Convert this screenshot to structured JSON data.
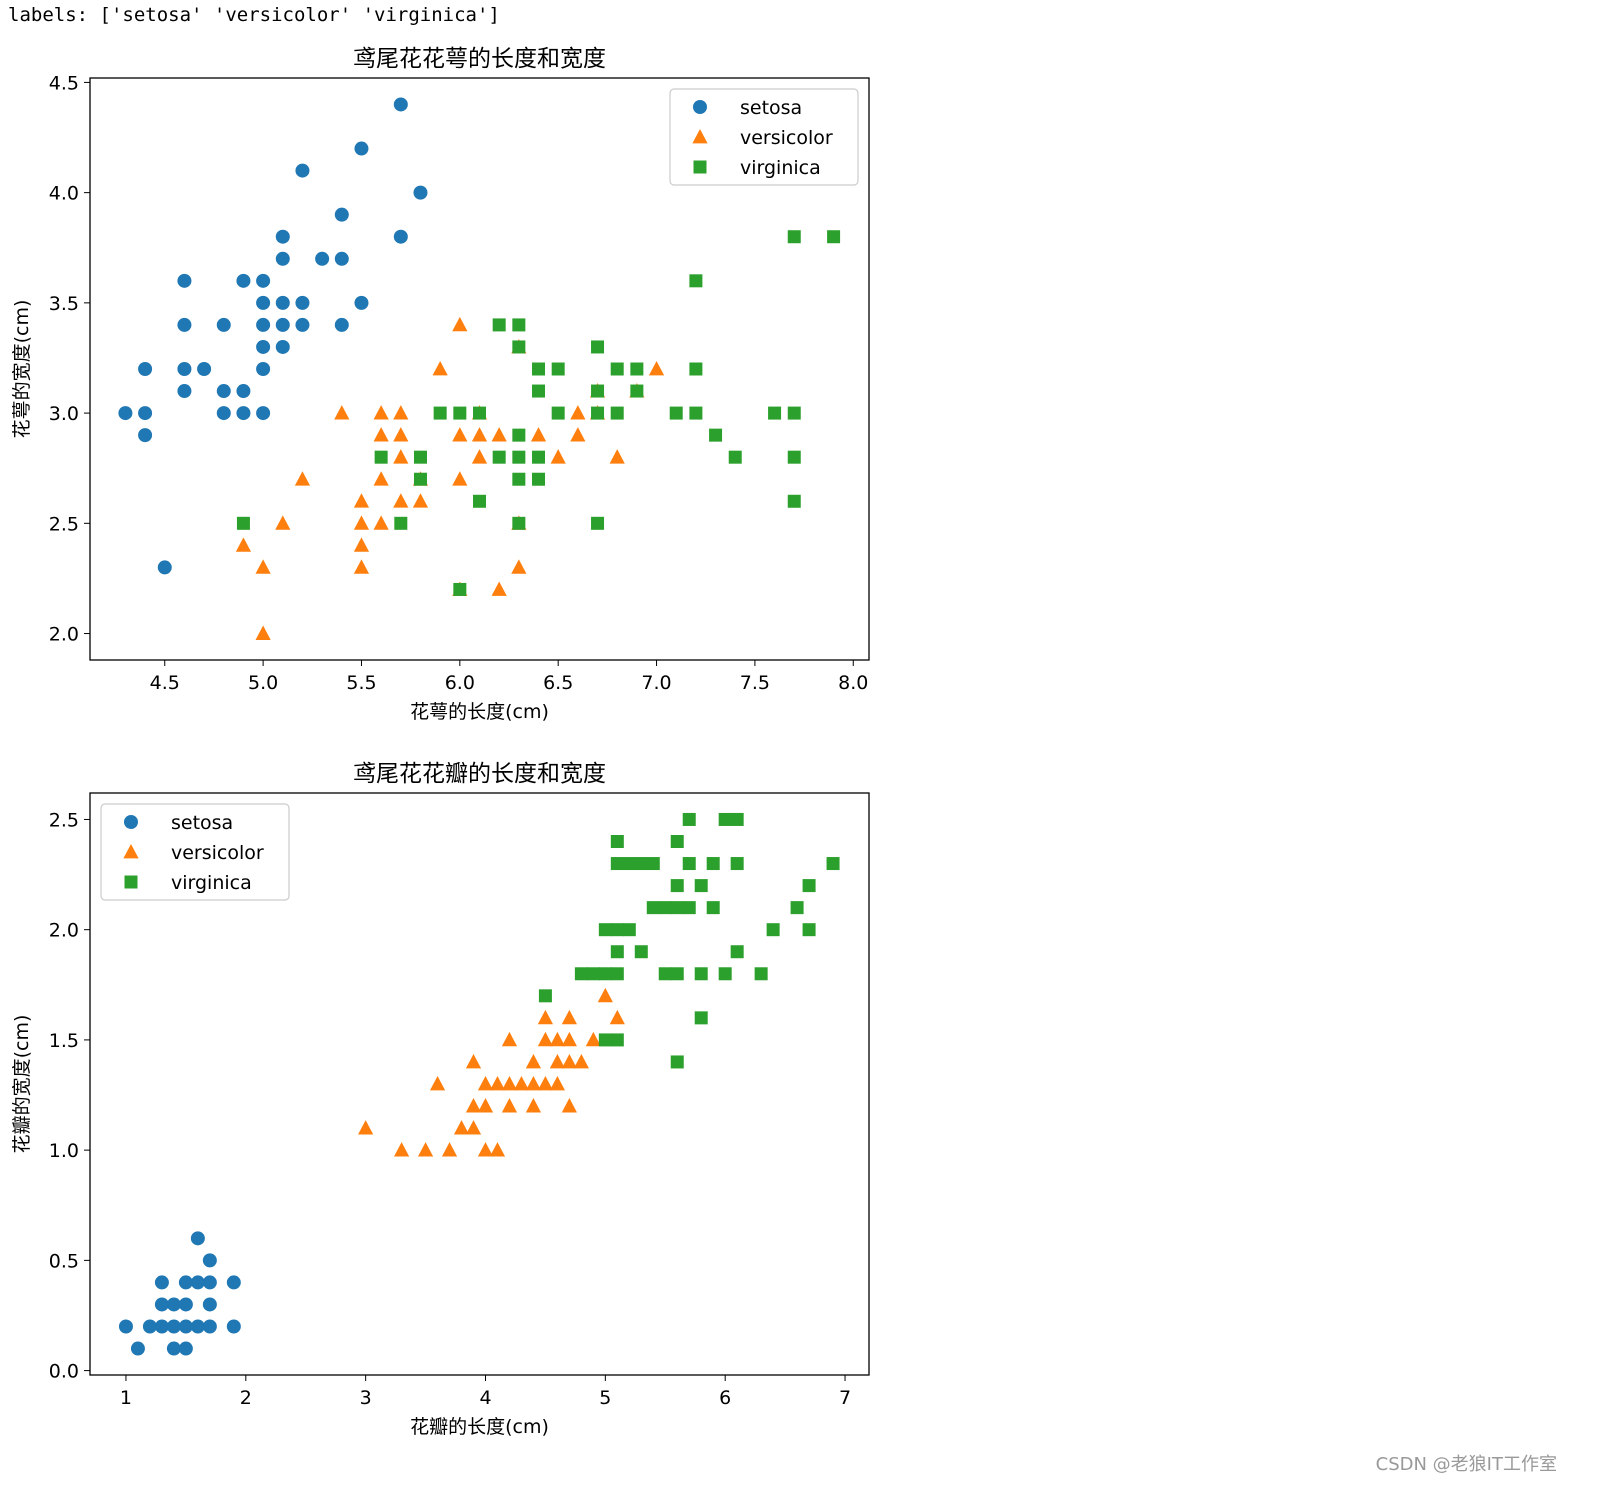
{
  "output": {
    "labels_text": "labels: ['setosa' 'versicolor' 'virginica']"
  },
  "watermark": "CSDN @老狼IT工作室",
  "colors": {
    "setosa": "#1f77b4",
    "versicolor": "#ff7f0e",
    "virginica": "#2ca02c"
  },
  "chart_data": [
    {
      "type": "scatter",
      "title": "鸢尾花花萼的长度和宽度",
      "xlabel": "花萼的长度(cm)",
      "ylabel": "花萼的宽度(cm)",
      "xlim": [
        4.12,
        8.08
      ],
      "ylim": [
        1.88,
        4.52
      ],
      "xticks": [
        4.5,
        5.0,
        5.5,
        6.0,
        6.5,
        7.0,
        7.5,
        8.0
      ],
      "xticklabels": [
        "4.5",
        "5.0",
        "5.5",
        "6.0",
        "6.5",
        "7.0",
        "7.5",
        "8.0"
      ],
      "yticks": [
        2.0,
        2.5,
        3.0,
        3.5,
        4.0,
        4.5
      ],
      "yticklabels": [
        "2.0",
        "2.5",
        "3.0",
        "3.5",
        "4.0",
        "4.5"
      ],
      "legend": "upper-right",
      "series": [
        {
          "name": "setosa",
          "marker": "circle",
          "points": [
            [
              4.3,
              3.0
            ],
            [
              4.4,
              2.9
            ],
            [
              4.4,
              3.0
            ],
            [
              4.4,
              3.2
            ],
            [
              4.5,
              2.3
            ],
            [
              4.6,
              3.1
            ],
            [
              4.6,
              3.2
            ],
            [
              4.6,
              3.4
            ],
            [
              4.6,
              3.6
            ],
            [
              4.7,
              3.2
            ],
            [
              4.8,
              3.0
            ],
            [
              4.8,
              3.1
            ],
            [
              4.8,
              3.4
            ],
            [
              4.9,
              3.0
            ],
            [
              4.9,
              3.1
            ],
            [
              4.9,
              3.6
            ],
            [
              5.0,
              3.0
            ],
            [
              5.0,
              3.2
            ],
            [
              5.0,
              3.3
            ],
            [
              5.0,
              3.4
            ],
            [
              5.0,
              3.5
            ],
            [
              5.0,
              3.6
            ],
            [
              5.1,
              3.3
            ],
            [
              5.1,
              3.4
            ],
            [
              5.1,
              3.5
            ],
            [
              5.1,
              3.7
            ],
            [
              5.1,
              3.8
            ],
            [
              5.2,
              3.4
            ],
            [
              5.2,
              3.5
            ],
            [
              5.2,
              4.1
            ],
            [
              5.3,
              3.7
            ],
            [
              5.4,
              3.4
            ],
            [
              5.4,
              3.7
            ],
            [
              5.4,
              3.9
            ],
            [
              5.5,
              3.5
            ],
            [
              5.5,
              4.2
            ],
            [
              5.7,
              3.8
            ],
            [
              5.7,
              4.4
            ],
            [
              5.8,
              4.0
            ]
          ]
        },
        {
          "name": "versicolor",
          "marker": "triangle",
          "points": [
            [
              4.9,
              2.4
            ],
            [
              5.0,
              2.0
            ],
            [
              5.0,
              2.3
            ],
            [
              5.1,
              2.5
            ],
            [
              5.2,
              2.7
            ],
            [
              5.4,
              3.0
            ],
            [
              5.5,
              2.3
            ],
            [
              5.5,
              2.4
            ],
            [
              5.5,
              2.5
            ],
            [
              5.5,
              2.6
            ],
            [
              5.6,
              2.5
            ],
            [
              5.6,
              2.7
            ],
            [
              5.6,
              2.9
            ],
            [
              5.6,
              3.0
            ],
            [
              5.7,
              2.6
            ],
            [
              5.7,
              2.8
            ],
            [
              5.7,
              2.9
            ],
            [
              5.7,
              3.0
            ],
            [
              5.8,
              2.6
            ],
            [
              5.8,
              2.7
            ],
            [
              5.9,
              3.2
            ],
            [
              6.0,
              2.2
            ],
            [
              6.0,
              2.7
            ],
            [
              6.0,
              2.9
            ],
            [
              6.0,
              3.4
            ],
            [
              6.1,
              2.8
            ],
            [
              6.1,
              2.9
            ],
            [
              6.1,
              3.0
            ],
            [
              6.2,
              2.2
            ],
            [
              6.2,
              2.9
            ],
            [
              6.3,
              2.3
            ],
            [
              6.3,
              2.5
            ],
            [
              6.3,
              3.3
            ],
            [
              6.4,
              2.9
            ],
            [
              6.5,
              2.8
            ],
            [
              6.6,
              2.9
            ],
            [
              6.6,
              3.0
            ],
            [
              6.7,
              3.0
            ],
            [
              6.7,
              3.1
            ],
            [
              6.8,
              2.8
            ],
            [
              6.9,
              3.1
            ],
            [
              7.0,
              3.2
            ]
          ]
        },
        {
          "name": "virginica",
          "marker": "square",
          "points": [
            [
              4.9,
              2.5
            ],
            [
              5.6,
              2.8
            ],
            [
              5.7,
              2.5
            ],
            [
              5.8,
              2.7
            ],
            [
              5.8,
              2.8
            ],
            [
              5.9,
              3.0
            ],
            [
              6.0,
              2.2
            ],
            [
              6.0,
              3.0
            ],
            [
              6.1,
              2.6
            ],
            [
              6.1,
              3.0
            ],
            [
              6.2,
              2.8
            ],
            [
              6.2,
              3.4
            ],
            [
              6.3,
              2.5
            ],
            [
              6.3,
              2.7
            ],
            [
              6.3,
              2.8
            ],
            [
              6.3,
              2.9
            ],
            [
              6.3,
              3.3
            ],
            [
              6.3,
              3.4
            ],
            [
              6.4,
              2.7
            ],
            [
              6.4,
              2.8
            ],
            [
              6.4,
              3.1
            ],
            [
              6.4,
              3.2
            ],
            [
              6.5,
              3.0
            ],
            [
              6.5,
              3.2
            ],
            [
              6.7,
              2.5
            ],
            [
              6.7,
              3.0
            ],
            [
              6.7,
              3.1
            ],
            [
              6.7,
              3.3
            ],
            [
              6.8,
              3.0
            ],
            [
              6.8,
              3.2
            ],
            [
              6.9,
              3.1
            ],
            [
              6.9,
              3.2
            ],
            [
              7.1,
              3.0
            ],
            [
              7.2,
              3.0
            ],
            [
              7.2,
              3.2
            ],
            [
              7.2,
              3.6
            ],
            [
              7.3,
              2.9
            ],
            [
              7.4,
              2.8
            ],
            [
              7.6,
              3.0
            ],
            [
              7.7,
              2.6
            ],
            [
              7.7,
              2.8
            ],
            [
              7.7,
              3.0
            ],
            [
              7.7,
              3.8
            ],
            [
              7.9,
              3.8
            ]
          ]
        }
      ]
    },
    {
      "type": "scatter",
      "title": "鸢尾花花瓣的长度和宽度",
      "xlabel": "花瓣的长度(cm)",
      "ylabel": "花瓣的宽度(cm)",
      "xlim": [
        0.7,
        7.2
      ],
      "ylim": [
        -0.02,
        2.62
      ],
      "xticks": [
        1,
        2,
        3,
        4,
        5,
        6,
        7
      ],
      "xticklabels": [
        "1",
        "2",
        "3",
        "4",
        "5",
        "6",
        "7"
      ],
      "yticks": [
        0.0,
        0.5,
        1.0,
        1.5,
        2.0,
        2.5
      ],
      "yticklabels": [
        "0.0",
        "0.5",
        "1.0",
        "1.5",
        "2.0",
        "2.5"
      ],
      "legend": "upper-left",
      "series": [
        {
          "name": "setosa",
          "marker": "circle",
          "points": [
            [
              1.0,
              0.2
            ],
            [
              1.1,
              0.1
            ],
            [
              1.2,
              0.2
            ],
            [
              1.3,
              0.2
            ],
            [
              1.3,
              0.3
            ],
            [
              1.3,
              0.4
            ],
            [
              1.4,
              0.1
            ],
            [
              1.4,
              0.2
            ],
            [
              1.4,
              0.3
            ],
            [
              1.5,
              0.1
            ],
            [
              1.5,
              0.2
            ],
            [
              1.5,
              0.3
            ],
            [
              1.5,
              0.4
            ],
            [
              1.6,
              0.2
            ],
            [
              1.6,
              0.4
            ],
            [
              1.6,
              0.6
            ],
            [
              1.7,
              0.2
            ],
            [
              1.7,
              0.3
            ],
            [
              1.7,
              0.4
            ],
            [
              1.7,
              0.5
            ],
            [
              1.9,
              0.2
            ],
            [
              1.9,
              0.4
            ]
          ]
        },
        {
          "name": "versicolor",
          "marker": "triangle",
          "points": [
            [
              3.0,
              1.1
            ],
            [
              3.3,
              1.0
            ],
            [
              3.5,
              1.0
            ],
            [
              3.6,
              1.3
            ],
            [
              3.7,
              1.0
            ],
            [
              3.8,
              1.1
            ],
            [
              3.9,
              1.1
            ],
            [
              3.9,
              1.2
            ],
            [
              3.9,
              1.4
            ],
            [
              4.0,
              1.0
            ],
            [
              4.0,
              1.2
            ],
            [
              4.0,
              1.3
            ],
            [
              4.1,
              1.0
            ],
            [
              4.1,
              1.3
            ],
            [
              4.2,
              1.2
            ],
            [
              4.2,
              1.3
            ],
            [
              4.2,
              1.5
            ],
            [
              4.3,
              1.3
            ],
            [
              4.4,
              1.2
            ],
            [
              4.4,
              1.3
            ],
            [
              4.4,
              1.4
            ],
            [
              4.5,
              1.3
            ],
            [
              4.5,
              1.5
            ],
            [
              4.5,
              1.6
            ],
            [
              4.6,
              1.3
            ],
            [
              4.6,
              1.4
            ],
            [
              4.6,
              1.5
            ],
            [
              4.7,
              1.2
            ],
            [
              4.7,
              1.4
            ],
            [
              4.7,
              1.5
            ],
            [
              4.7,
              1.6
            ],
            [
              4.8,
              1.4
            ],
            [
              4.9,
              1.5
            ],
            [
              5.0,
              1.7
            ],
            [
              5.1,
              1.6
            ]
          ]
        },
        {
          "name": "virginica",
          "marker": "square",
          "points": [
            [
              4.5,
              1.7
            ],
            [
              4.8,
              1.8
            ],
            [
              4.9,
              1.8
            ],
            [
              5.0,
              1.5
            ],
            [
              5.0,
              1.8
            ],
            [
              5.0,
              2.0
            ],
            [
              5.1,
              1.5
            ],
            [
              5.1,
              1.8
            ],
            [
              5.1,
              1.9
            ],
            [
              5.1,
              2.0
            ],
            [
              5.1,
              2.3
            ],
            [
              5.1,
              2.4
            ],
            [
              5.2,
              2.0
            ],
            [
              5.2,
              2.3
            ],
            [
              5.3,
              1.9
            ],
            [
              5.3,
              2.3
            ],
            [
              5.4,
              2.1
            ],
            [
              5.4,
              2.3
            ],
            [
              5.5,
              1.8
            ],
            [
              5.5,
              2.1
            ],
            [
              5.6,
              1.4
            ],
            [
              5.6,
              1.8
            ],
            [
              5.6,
              2.1
            ],
            [
              5.6,
              2.2
            ],
            [
              5.6,
              2.4
            ],
            [
              5.7,
              2.1
            ],
            [
              5.7,
              2.3
            ],
            [
              5.7,
              2.5
            ],
            [
              5.8,
              1.6
            ],
            [
              5.8,
              1.8
            ],
            [
              5.8,
              2.2
            ],
            [
              5.9,
              2.1
            ],
            [
              5.9,
              2.3
            ],
            [
              6.0,
              1.8
            ],
            [
              6.0,
              2.5
            ],
            [
              6.1,
              1.9
            ],
            [
              6.1,
              2.3
            ],
            [
              6.1,
              2.5
            ],
            [
              6.3,
              1.8
            ],
            [
              6.4,
              2.0
            ],
            [
              6.6,
              2.1
            ],
            [
              6.7,
              2.0
            ],
            [
              6.7,
              2.2
            ],
            [
              6.9,
              2.3
            ]
          ]
        }
      ]
    }
  ]
}
